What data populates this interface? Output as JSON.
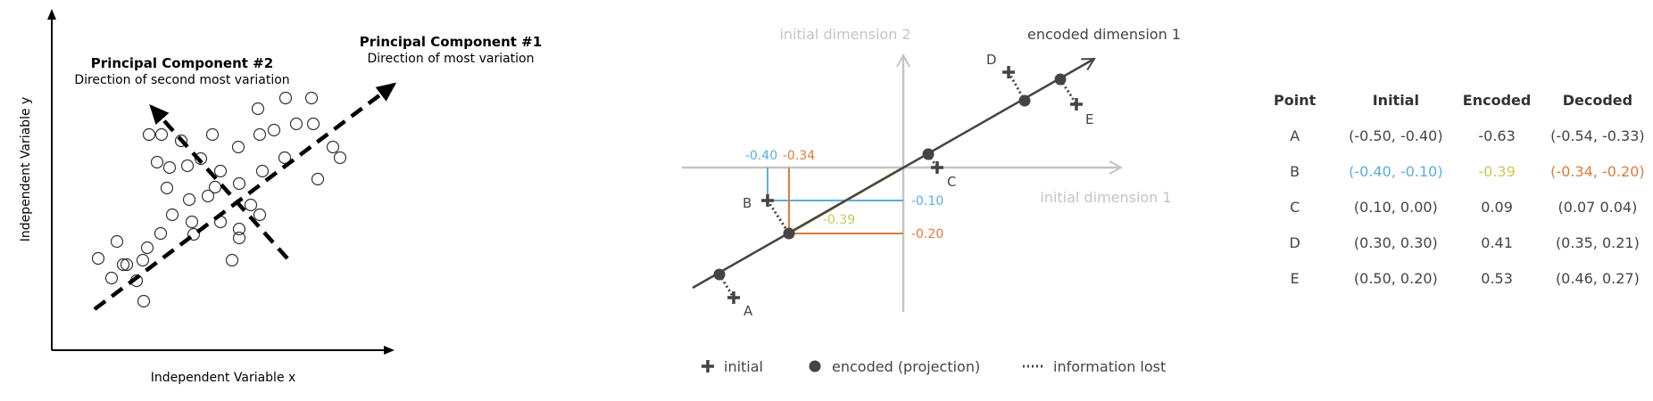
{
  "colors": {
    "blue": "#5aaede",
    "orange": "#e07a3a",
    "yellow": "#c8c95a",
    "gray": "#c4c4c4",
    "dark": "#444444"
  },
  "pca": {
    "pc1_title": "Principal Component #1",
    "pc1_desc": "Direction of most variation",
    "pc2_title": "Principal Component #2",
    "pc2_desc": "Direction of second most variation",
    "xlabel": "Independent Variable x",
    "ylabel": "Independent Variable y"
  },
  "projection": {
    "axis_labels": {
      "initial_dim2": "initial dimension 2",
      "encoded_dim1": "encoded dimension 1",
      "initial_dim1": "initial dimension 1"
    },
    "point_labels": {
      "A": "A",
      "B": "B",
      "C": "C",
      "D": "D",
      "E": "E"
    },
    "value_labels": {
      "b_x_init": "-0.40",
      "b_x_decoded": "-0.34",
      "b_y_init": "-0.10",
      "b_encoded": "-0.39",
      "b_y_decoded": "-0.20"
    },
    "legend": {
      "initial": "initial",
      "encoded": "encoded (projection)",
      "lost": "information lost"
    }
  },
  "table": {
    "headers": [
      "Point",
      "Initial",
      "Encoded",
      "Decoded"
    ],
    "rows": [
      [
        "A",
        "(-0.50, -0.40)",
        "-0.63",
        "(-0.54, -0.33)"
      ],
      [
        "B",
        "(-0.40, -0.10)",
        "-0.39",
        "(-0.34, -0.20)"
      ],
      [
        "C",
        "(0.10, 0.00)",
        "0.09",
        "(0.07 0.04)"
      ],
      [
        "D",
        "(0.30, 0.30)",
        "0.41",
        "(0.35, 0.21)"
      ],
      [
        "E",
        "(0.50, 0.20)",
        "0.53",
        "(0.46, 0.27)"
      ]
    ]
  }
}
